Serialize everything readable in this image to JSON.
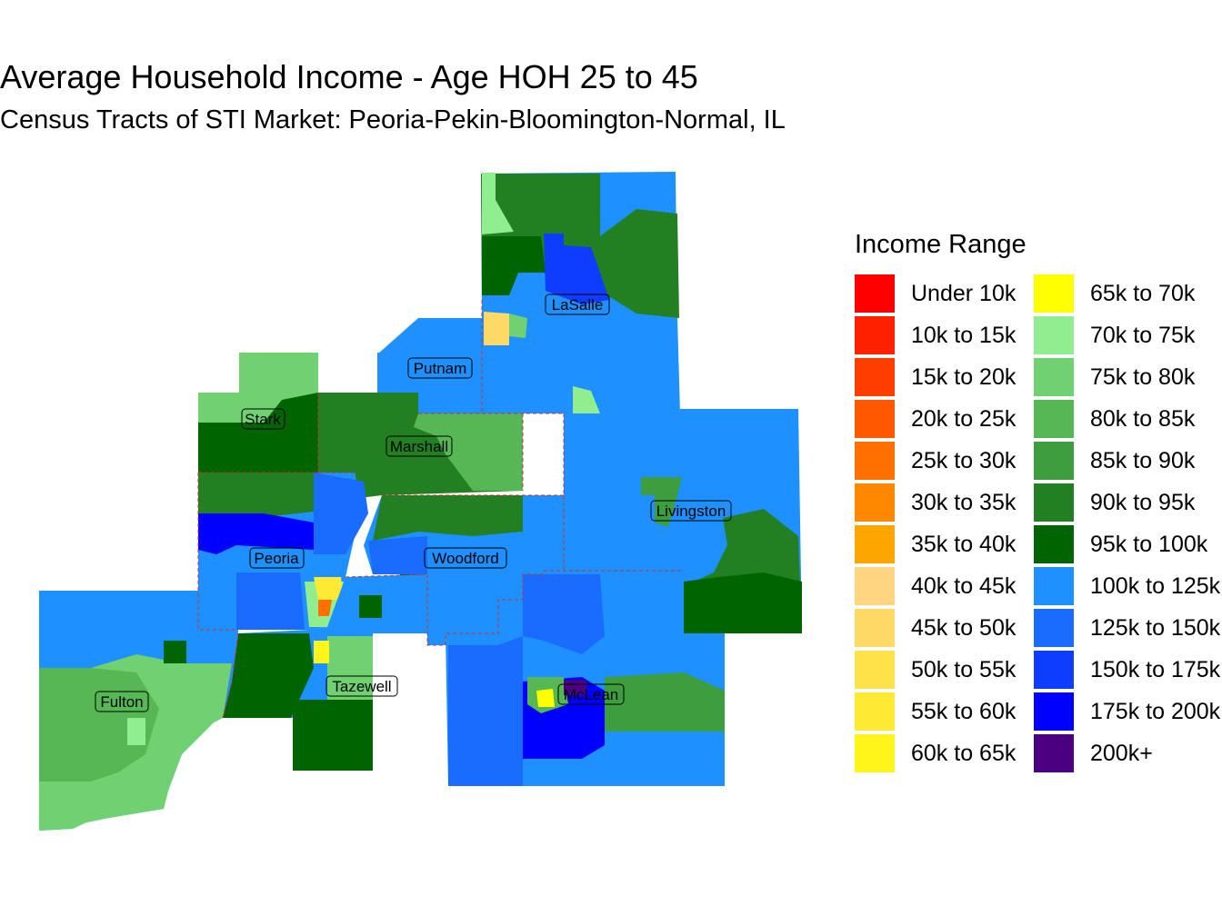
{
  "title": "Average Household Income - Age HOH 25 to 45",
  "subtitle": "Census Tracts of STI Market: Peoria-Pekin-Bloomington-Normal, IL",
  "legend": {
    "title": "Income Range",
    "items": [
      {
        "label": "Under 10k",
        "color": "#ff0000"
      },
      {
        "label": "10k to 15k",
        "color": "#ff2000"
      },
      {
        "label": "15k to 20k",
        "color": "#ff3d00"
      },
      {
        "label": "20k to 25k",
        "color": "#ff5800"
      },
      {
        "label": "25k to 30k",
        "color": "#ff7000"
      },
      {
        "label": "30k to 35k",
        "color": "#ff8800"
      },
      {
        "label": "35k to 40k",
        "color": "#ffa500"
      },
      {
        "label": "40k to 45k",
        "color": "#ffd580"
      },
      {
        "label": "45k to 50k",
        "color": "#ffd966"
      },
      {
        "label": "50k to 55k",
        "color": "#ffe24a"
      },
      {
        "label": "55k to 60k",
        "color": "#ffea33"
      },
      {
        "label": "60k to 65k",
        "color": "#fff51a"
      },
      {
        "label": "65k to 70k",
        "color": "#ffff00"
      },
      {
        "label": "70k to 75k",
        "color": "#90ee90"
      },
      {
        "label": "75k to 80k",
        "color": "#6fd16f"
      },
      {
        "label": "80k to 85k",
        "color": "#55b855"
      },
      {
        "label": "85k to 90k",
        "color": "#3c9e3c"
      },
      {
        "label": "90k to 95k",
        "color": "#228022"
      },
      {
        "label": "95k to 100k",
        "color": "#006400"
      },
      {
        "label": "100k to 125k",
        "color": "#1e90ff"
      },
      {
        "label": "125k to 150k",
        "color": "#1a6bff"
      },
      {
        "label": "150k to 175k",
        "color": "#0f3dff"
      },
      {
        "label": "175k to 200k",
        "color": "#0000ff"
      },
      {
        "label": "200k+",
        "color": "#4b0082"
      }
    ]
  },
  "counties": [
    {
      "name": "LaSalle"
    },
    {
      "name": "Putnam"
    },
    {
      "name": "Stark"
    },
    {
      "name": "Marshall"
    },
    {
      "name": "Livingston"
    },
    {
      "name": "Peoria"
    },
    {
      "name": "Woodford"
    },
    {
      "name": "Tazewell"
    },
    {
      "name": "McLean"
    },
    {
      "name": "Fulton"
    }
  ]
}
